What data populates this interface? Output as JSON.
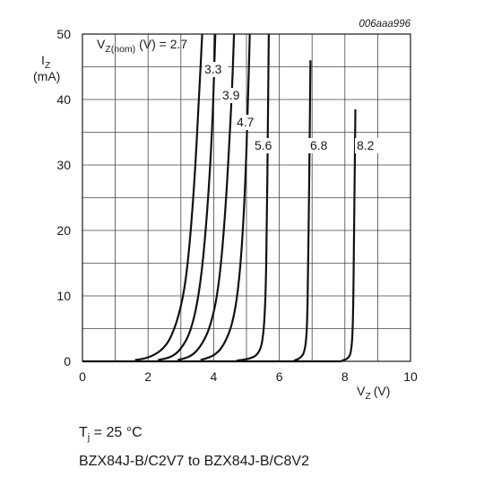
{
  "chart_data": {
    "type": "line",
    "figure_ref": "006aaa996",
    "y_axis": {
      "symbol": "I",
      "subscript": "Z",
      "unit": "(mA)"
    },
    "x_axis": {
      "symbol": "V",
      "subscript": "Z",
      "unit": "(V)"
    },
    "xlim": [
      0,
      10
    ],
    "ylim": [
      0,
      50
    ],
    "x_ticks": [
      0,
      2,
      4,
      6,
      8,
      10
    ],
    "y_ticks": [
      0,
      10,
      20,
      30,
      40,
      50
    ],
    "grid": true,
    "legend_title": {
      "symbol": "V",
      "subscript": "Z(nom)",
      "suffix": " (V) = "
    },
    "series": [
      {
        "name": "2.7",
        "points": [
          [
            1.6,
            0.2
          ],
          [
            2.0,
            0.5
          ],
          [
            2.4,
            1.6
          ],
          [
            2.7,
            3.5
          ],
          [
            3.0,
            8
          ],
          [
            3.2,
            14
          ],
          [
            3.4,
            26
          ],
          [
            3.55,
            40
          ],
          [
            3.65,
            50
          ]
        ]
      },
      {
        "name": "3.3",
        "points": [
          [
            2.3,
            0.2
          ],
          [
            2.7,
            0.6
          ],
          [
            3.0,
            1.8
          ],
          [
            3.3,
            4.5
          ],
          [
            3.55,
            10
          ],
          [
            3.75,
            19
          ],
          [
            3.95,
            34
          ],
          [
            4.05,
            50
          ]
        ]
      },
      {
        "name": "3.9",
        "points": [
          [
            2.9,
            0.2
          ],
          [
            3.3,
            0.7
          ],
          [
            3.6,
            2.2
          ],
          [
            3.9,
            5.2
          ],
          [
            4.15,
            11
          ],
          [
            4.35,
            22
          ],
          [
            4.55,
            40
          ],
          [
            4.62,
            50
          ]
        ]
      },
      {
        "name": "4.7",
        "points": [
          [
            3.6,
            0.2
          ],
          [
            4.0,
            0.8
          ],
          [
            4.3,
            2.3
          ],
          [
            4.6,
            6
          ],
          [
            4.8,
            13
          ],
          [
            4.95,
            25
          ],
          [
            5.05,
            40
          ],
          [
            5.1,
            50
          ]
        ]
      },
      {
        "name": "5.6",
        "points": [
          [
            4.7,
            0.1
          ],
          [
            5.1,
            0.4
          ],
          [
            5.35,
            1.0
          ],
          [
            5.5,
            3
          ],
          [
            5.58,
            9
          ],
          [
            5.62,
            20
          ],
          [
            5.65,
            35
          ],
          [
            5.68,
            50
          ]
        ]
      },
      {
        "name": "6.8",
        "points": [
          [
            6.45,
            0.1
          ],
          [
            6.65,
            0.5
          ],
          [
            6.78,
            1.5
          ],
          [
            6.85,
            5
          ],
          [
            6.88,
            15
          ],
          [
            6.92,
            30
          ],
          [
            6.95,
            46
          ]
        ]
      },
      {
        "name": "8.2",
        "points": [
          [
            7.9,
            0.1
          ],
          [
            8.1,
            0.4
          ],
          [
            8.2,
            1.5
          ],
          [
            8.25,
            6
          ],
          [
            8.28,
            20
          ],
          [
            8.32,
            38.5
          ]
        ]
      }
    ],
    "curve_labels": [
      "2.7",
      "3.3",
      "3.9",
      "4.7",
      "5.6",
      "6.8",
      "8.2"
    ]
  },
  "caption": {
    "temperature": {
      "symbol": "T",
      "subscript": "j",
      "value": " = 25 °C"
    },
    "part_range": "BZX84J-B/C2V7 to BZX84J-B/C8V2"
  }
}
